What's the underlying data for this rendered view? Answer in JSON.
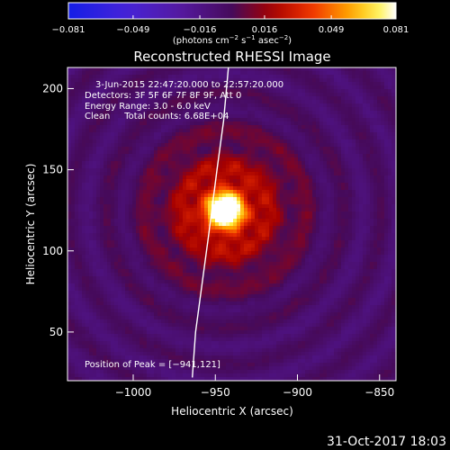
{
  "chart_data": {
    "type": "heatmap",
    "title": "Reconstructed RHESSI Image",
    "xlabel": "Heliocentric X (arcsec)",
    "ylabel": "Heliocentric Y (arcsec)",
    "xlim": [
      -1040,
      -840
    ],
    "ylim": [
      20,
      213
    ],
    "xticks": [
      -1000,
      -950,
      -900,
      -850
    ],
    "yticks": [
      50,
      100,
      150,
      200
    ],
    "colorbar": {
      "min": -0.081,
      "max": 0.081,
      "ticks": [
        -0.081,
        -0.049,
        -0.016,
        0.016,
        0.049,
        0.081
      ],
      "tick_labels": [
        "−0.081",
        "−0.049",
        "−0.016",
        "0.016",
        "0.049",
        "0.081"
      ],
      "unit_parts": [
        "(photons cm",
        "−2",
        " s",
        "−1",
        " asec",
        "−2",
        ")"
      ]
    },
    "annotations": [
      "3-Jun-2015 22:47:20.000 to 22:57:20.000",
      "Detectors: 3F 5F 6F 7F 8F 9F, Att 0",
      "Energy Range: 3.0 - 6.0 keV",
      "Clean     Total counts: 6.68E+04"
    ],
    "peak_label": "Position of Peak = [−941,121]",
    "peak": [
      -941,
      121
    ],
    "source": {
      "center": [
        -944,
        125
      ],
      "peak_value": 0.081,
      "sigma_core": 8,
      "sigma_halo": 30,
      "halo_value": 0.035,
      "background_value": -0.006
    },
    "limb": [
      [
        -942,
        213
      ],
      [
        -945,
        180
      ],
      [
        -949,
        150
      ],
      [
        -954,
        110
      ],
      [
        -958,
        80
      ],
      [
        -962,
        50
      ],
      [
        -964,
        22
      ]
    ]
  },
  "footer": {
    "timestamp": "31-Oct-2017 18:03"
  }
}
